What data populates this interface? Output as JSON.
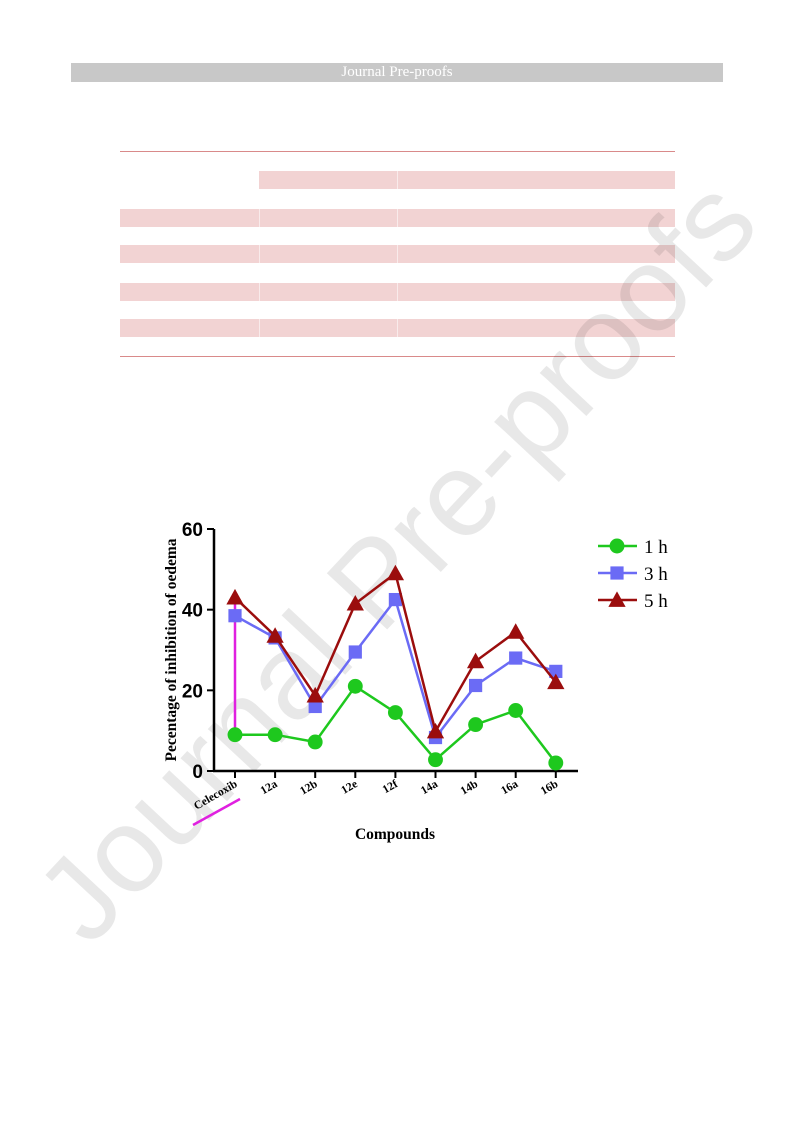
{
  "header": {
    "title": "Journal Pre-proofs"
  },
  "watermark": {
    "text": "Journal Pre-proofs"
  },
  "table": {
    "band_color": "#f2d3d3",
    "rule_color": "#d98a8a"
  },
  "chart_data": {
    "type": "line",
    "categories": [
      "Celecoxib",
      "12a",
      "12b",
      "12e",
      "12f",
      "14a",
      "14b",
      "16a",
      "16b"
    ],
    "series": [
      {
        "name": "1 h",
        "color": "#1ec81e",
        "marker": "circle",
        "values": [
          9,
          9,
          7.2,
          21,
          14.5,
          2.8,
          11.5,
          15,
          2
        ]
      },
      {
        "name": "3 h",
        "color": "#6b6bf5",
        "marker": "square",
        "values": [
          38.5,
          33,
          16,
          29.5,
          42.5,
          8.3,
          21.2,
          28,
          24.7
        ]
      },
      {
        "name": "5 h",
        "color": "#9b0d0d",
        "marker": "triangle",
        "values": [
          43,
          33.5,
          18.7,
          41.5,
          49,
          9.8,
          27.2,
          34.5,
          22
        ]
      }
    ],
    "xlabel": "Compounds",
    "ylabel": "Pecentage of inhibition of oedema",
    "ylim": [
      0,
      60
    ],
    "yticks": [
      0,
      20,
      40,
      60
    ],
    "grid": false,
    "legend": "top-right",
    "highlight_color": "#e020e0"
  }
}
